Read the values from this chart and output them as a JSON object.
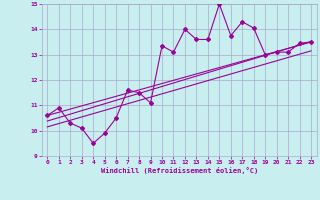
{
  "xlabel": "Windchill (Refroidissement éolien,°C)",
  "ylabel": "",
  "bg_color": "#c8eef0",
  "line_color": "#990099",
  "grid_color": "#aaaacc",
  "xlim": [
    -0.5,
    23.5
  ],
  "ylim": [
    9,
    15
  ],
  "xticks": [
    0,
    1,
    2,
    3,
    4,
    5,
    6,
    7,
    8,
    9,
    10,
    11,
    12,
    13,
    14,
    15,
    16,
    17,
    18,
    19,
    20,
    21,
    22,
    23
  ],
  "yticks": [
    9,
    10,
    11,
    12,
    13,
    14,
    15
  ],
  "data_x": [
    0,
    1,
    2,
    3,
    4,
    5,
    6,
    7,
    8,
    9,
    10,
    11,
    12,
    13,
    14,
    15,
    16,
    17,
    18,
    19,
    20,
    21,
    22,
    23
  ],
  "data_y": [
    10.6,
    10.9,
    10.3,
    10.1,
    9.5,
    9.9,
    10.5,
    11.6,
    11.5,
    11.1,
    13.35,
    13.1,
    14.0,
    13.6,
    13.6,
    15.0,
    13.75,
    14.3,
    14.05,
    13.0,
    13.1,
    13.1,
    13.45,
    13.5
  ],
  "trend1_x": [
    0,
    23
  ],
  "trend1_y": [
    10.6,
    13.5
  ],
  "trend2_x": [
    0,
    23
  ],
  "trend2_y": [
    10.15,
    13.15
  ],
  "trend3_x": [
    0,
    23
  ],
  "trend3_y": [
    10.38,
    13.52
  ]
}
